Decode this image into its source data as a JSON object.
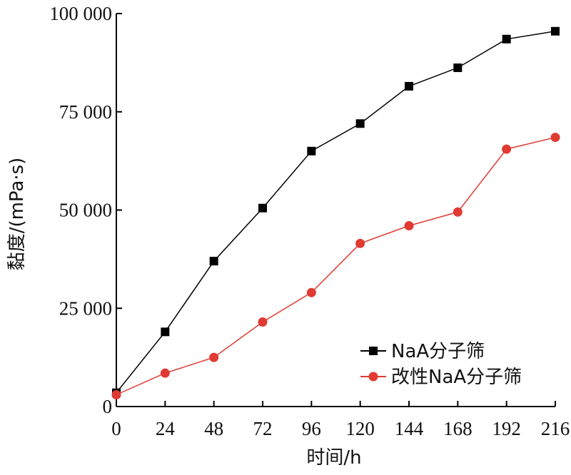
{
  "chart_data": {
    "type": "line",
    "x": [
      0,
      24,
      48,
      72,
      96,
      120,
      144,
      168,
      192,
      216
    ],
    "xlabel": "时间/h",
    "ylabel": "黏度/(mPa·s)",
    "xlim": [
      0,
      216
    ],
    "ylim": [
      0,
      100000
    ],
    "x_ticks": [
      "0",
      "24",
      "48",
      "72",
      "96",
      "120",
      "144",
      "168",
      "192",
      "216"
    ],
    "y_ticks": [
      "0",
      "25 000",
      "50 000",
      "75 000",
      "100 000"
    ],
    "grid": false,
    "legend_position": "bottom-right",
    "series": [
      {
        "name": "NaA分子筛",
        "color": "#000000",
        "marker": "square",
        "values": [
          3500,
          19000,
          37000,
          50500,
          65000,
          72000,
          81500,
          86200,
          93500,
          95500
        ]
      },
      {
        "name": "改性NaA分子筛",
        "color": "#e03a33",
        "marker": "circle",
        "values": [
          3000,
          8500,
          12500,
          21500,
          29000,
          41500,
          46000,
          49500,
          65500,
          68500
        ]
      }
    ]
  }
}
